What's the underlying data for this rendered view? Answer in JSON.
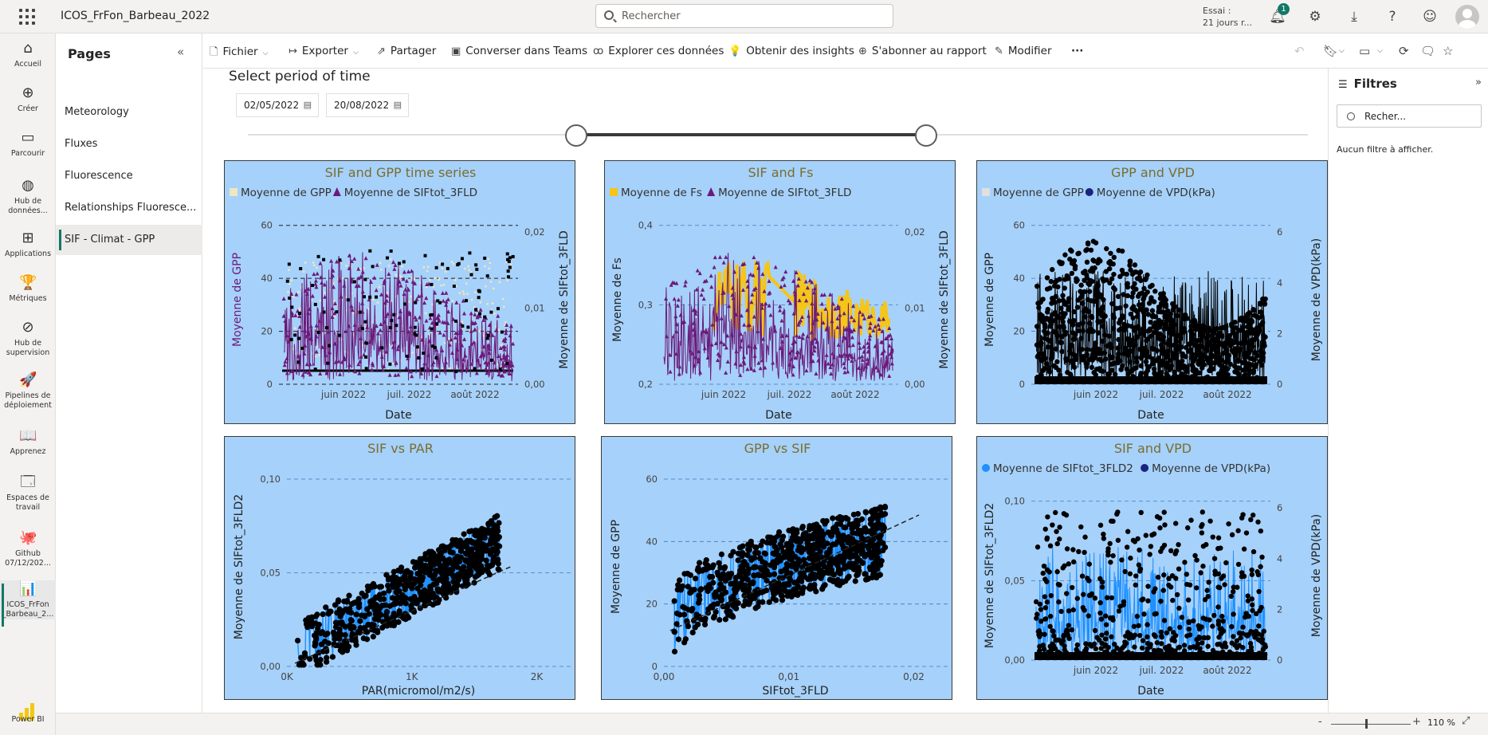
{
  "app": {
    "title": "ICOS_FrFon_Barbeau_2022",
    "search_placeholder": "Rechercher",
    "trial_line1": "Essai :",
    "trial_line2": "21 jours r...",
    "notification_count": "1"
  },
  "leftnav": [
    {
      "label": "Accueil",
      "icon": "home-icon",
      "glyph": "⌂"
    },
    {
      "label": "Créer",
      "icon": "create-icon",
      "glyph": "⊕"
    },
    {
      "label": "Parcourir",
      "icon": "browse-icon",
      "glyph": "▭"
    },
    {
      "label": "Hub de\ndonnées...",
      "icon": "data-hub-icon",
      "glyph": "◍"
    },
    {
      "label": "Applications",
      "icon": "apps-icon",
      "glyph": "⊞"
    },
    {
      "label": "Métriques",
      "icon": "metrics-icon",
      "glyph": "🏆"
    },
    {
      "label": "Hub de\nsupervision",
      "icon": "monitoring-icon",
      "glyph": "⊘"
    },
    {
      "label": "Pipelines de\ndéploiement",
      "icon": "pipelines-icon",
      "glyph": "🚀"
    },
    {
      "label": "Apprenez",
      "icon": "learn-icon",
      "glyph": "📖"
    },
    {
      "label": "Espaces de\ntravail",
      "icon": "workspaces-icon",
      "glyph": "🗔"
    },
    {
      "label": "Github\n07/12/202...",
      "icon": "github-icon",
      "glyph": "🐙"
    },
    {
      "label": "ICOS_FrFon\n_Barbeau_2...",
      "icon": "report-icon",
      "glyph": "📊"
    }
  ],
  "powerbi_label": "Power BI",
  "pages": {
    "header": "Pages",
    "items": [
      "Meteorology",
      "Fluxes",
      "Fluorescence",
      "Relationships Fluoresce...",
      "SIF - Climat - GPP"
    ],
    "active_index": 4
  },
  "toolbar": {
    "items": [
      {
        "label": "Fichier",
        "icon": "file-icon",
        "glyph": "🗋",
        "dropdown": true
      },
      {
        "label": "Exporter",
        "icon": "export-icon",
        "glyph": "↦",
        "dropdown": true
      },
      {
        "label": "Partager",
        "icon": "share-icon",
        "glyph": "⇗",
        "dropdown": false
      },
      {
        "label": "Converser dans Teams",
        "icon": "teams-icon",
        "glyph": "▣",
        "dropdown": false
      },
      {
        "label": "Explorer ces données",
        "icon": "explore-icon",
        "glyph": "ꝏ",
        "dropdown": false
      },
      {
        "label": "Obtenir des insights",
        "icon": "insights-icon",
        "glyph": "💡",
        "dropdown": false
      },
      {
        "label": "S'abonner au rapport",
        "icon": "subscribe-icon",
        "glyph": "⊕",
        "dropdown": false
      },
      {
        "label": "Modifier",
        "icon": "edit-icon",
        "glyph": "✎",
        "dropdown": false
      }
    ],
    "more": "···"
  },
  "slicer": {
    "title": "Select period of time",
    "start_date": "02/05/2022",
    "end_date": "20/08/2022",
    "range": [
      0.31,
      0.64
    ]
  },
  "filters": {
    "title": "Filtres",
    "search_placeholder": "Recher...",
    "empty_text": "Aucun filtre à afficher."
  },
  "status": {
    "zoom": "110 %",
    "zoom_level": 0.43
  },
  "colors": {
    "panel_bg": "#a6d1fa",
    "title": "#7a6e2f",
    "purple": "#6b1a7a",
    "yellow": "#f5c518",
    "cream": "#f0e6c0",
    "blue": "#1e90ff",
    "black": "#000000",
    "navy": "#1a237e"
  },
  "charts": [
    {
      "key": "sif_gpp_ts",
      "title": "SIF and GPP time series",
      "type": "timeseries",
      "legend": [
        {
          "label": "Moyenne de GPP",
          "color": "#f0e6c0",
          "shape": "square"
        },
        {
          "label": "Moyenne de SIFtot_3FLD",
          "color": "#6b1a7a",
          "shape": "triangle"
        }
      ],
      "ylabel": "Moyenne de GPP",
      "y2label": "Moyenne de SIFtot_3FLD",
      "xlabel": "Date",
      "xticks": [
        "juin 2022",
        "juil. 2022",
        "août 2022"
      ],
      "yticks": [
        "0",
        "20",
        "40",
        "60"
      ],
      "y2ticks": [
        "0,00",
        "0,01",
        "0,02"
      ],
      "ylim": [
        -8,
        60
      ],
      "series": [
        {
          "name": "Moyenne de GPP",
          "range": [
            -5,
            58
          ],
          "color": "#000000"
        },
        {
          "name": "Moyenne de SIFtot_3FLD",
          "range": [
            0,
            0.023
          ],
          "color": "#6b1a7a"
        }
      ]
    },
    {
      "key": "sif_fs",
      "title": "SIF and Fs",
      "type": "timeseries",
      "legend": [
        {
          "label": "Moyenne de Fs",
          "color": "#f5c518",
          "shape": "square"
        },
        {
          "label": "Moyenne de SIFtot_3FLD",
          "color": "#6b1a7a",
          "shape": "triangle"
        }
      ],
      "ylabel": "Moyenne de Fs",
      "y2label": "Moyenne de SIFtot_3FLD",
      "xlabel": "Date",
      "xticks": [
        "juin 2022",
        "juil. 2022",
        "août 2022"
      ],
      "yticks": [
        "0,2",
        "0,3",
        "0,4"
      ],
      "y2ticks": [
        "0,00",
        "0,01",
        "0,02"
      ],
      "ylim": [
        0.15,
        0.42
      ],
      "series": [
        {
          "name": "Moyenne de Fs",
          "range": [
            0.15,
            0.41
          ],
          "color": "#f5c518"
        },
        {
          "name": "Moyenne de SIFtot_3FLD",
          "range": [
            0,
            0.023
          ],
          "color": "#6b1a7a"
        }
      ]
    },
    {
      "key": "gpp_vpd",
      "title": "GPP and VPD",
      "type": "timeseries",
      "legend": [
        {
          "label": "Moyenne de GPP",
          "color": "#e0e0e0",
          "shape": "square"
        },
        {
          "label": "Moyenne de VPD(kPa)",
          "color": "#1a237e",
          "shape": "circle"
        }
      ],
      "ylabel": "Moyenne de GPP",
      "y2label": "Moyenne de VPD(kPa)",
      "xlabel": "Date",
      "xticks": [
        "juin 2022",
        "juil. 2022",
        "août 2022"
      ],
      "yticks": [
        "0",
        "20",
        "40",
        "60"
      ],
      "y2ticks": [
        "0",
        "2",
        "4",
        "6"
      ],
      "ylim": [
        -8,
        60
      ],
      "series": [
        {
          "name": "Moyenne de GPP",
          "range": [
            -5,
            58
          ],
          "color": "#000000"
        },
        {
          "name": "Moyenne de VPD(kPa)",
          "range": [
            0,
            5
          ],
          "color": "#000000"
        }
      ]
    },
    {
      "key": "sif_par",
      "title": "SIF vs PAR",
      "type": "scatter",
      "legend": [],
      "ylabel": "Moyenne de SIFtot_3FLD2",
      "y2label": "",
      "xlabel": "PAR(micromol/m2/s)",
      "xticks": [
        "0K",
        "1K",
        "2K"
      ],
      "yticks": [
        "0,00",
        "0,05",
        "0,10"
      ],
      "y2ticks": [],
      "xlim": [
        0,
        2100
      ],
      "ylim": [
        0,
        0.1
      ],
      "series": [
        {
          "name": "Moyenne de SIFtot_3FLD2",
          "color": "#000000"
        }
      ]
    },
    {
      "key": "gpp_sif",
      "title": "GPP vs SIF",
      "type": "scatter",
      "legend": [],
      "ylabel": "Moyenne de GPP",
      "y2label": "",
      "xlabel": "SIFtot_3FLD",
      "xticks": [
        "0,00",
        "0,01",
        "0,02"
      ],
      "yticks": [
        "0",
        "20",
        "40",
        "60"
      ],
      "y2ticks": [],
      "xlim": [
        0,
        0.022
      ],
      "ylim": [
        -8,
        60
      ],
      "series": [
        {
          "name": "Moyenne de GPP",
          "color": "#000000"
        }
      ]
    },
    {
      "key": "sif_vpd",
      "title": "SIF and VPD",
      "type": "timeseries",
      "legend": [
        {
          "label": "Moyenne de SIFtot_3FLD2",
          "color": "#1e90ff",
          "shape": "circle"
        },
        {
          "label": "Moyenne de VPD(kPa)",
          "color": "#1a237e",
          "shape": "circle"
        }
      ],
      "ylabel": "Moyenne de SIFtot_3FLD2",
      "y2label": "Moyenne de VPD(kPa)",
      "xlabel": "Date",
      "xticks": [
        "juin 2022",
        "juil. 2022",
        "août 2022"
      ],
      "yticks": [
        "0,00",
        "0,05",
        "0,10"
      ],
      "y2ticks": [
        "0",
        "2",
        "4",
        "6"
      ],
      "ylim": [
        0,
        0.1
      ],
      "series": [
        {
          "name": "Moyenne de SIFtot_3FLD2",
          "range": [
            0,
            0.1
          ],
          "color": "#000000"
        },
        {
          "name": "Moyenne de VPD(kPa)",
          "range": [
            0,
            6
          ],
          "color": "#000000"
        }
      ]
    }
  ]
}
